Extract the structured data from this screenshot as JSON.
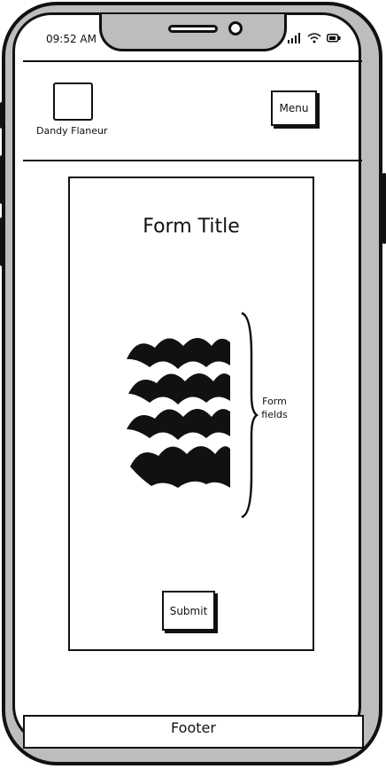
{
  "status_bar": {
    "time": "09:52 AM",
    "icons": [
      "signal-icon",
      "wifi-icon",
      "battery-icon"
    ]
  },
  "header": {
    "logo_label": "Dandy Flaneur",
    "menu_label": "Menu"
  },
  "form": {
    "title": "Form Title",
    "fields_annotation_line1": "Form",
    "fields_annotation_line2": "fields",
    "submit_label": "Submit"
  },
  "footer": {
    "label": "Footer"
  }
}
